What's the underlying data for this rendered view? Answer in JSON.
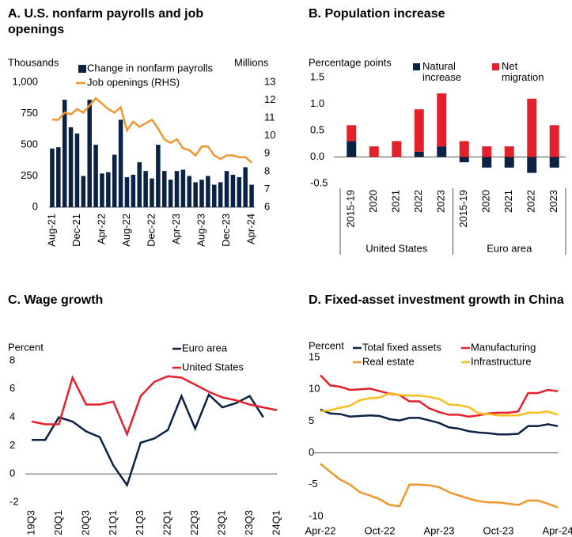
{
  "chart_data": [
    {
      "type": "combo",
      "title": "A. U.S. nonfarm payrolls and job openings",
      "y_label": "Thousands",
      "y2_label": "Millions",
      "categories": [
        "Aug-21",
        null,
        null,
        null,
        "Dec-21",
        null,
        null,
        null,
        "Apr-22",
        null,
        null,
        null,
        "Aug-22",
        null,
        null,
        null,
        "Dec-22",
        null,
        null,
        null,
        "Apr-23",
        null,
        null,
        null,
        "Aug-23",
        null,
        null,
        null,
        "Dec-23",
        null,
        null,
        null,
        "Apr-24"
      ],
      "series": [
        {
          "name": "Change in nonfarm payrolls",
          "kind": "bar",
          "color": "#0b2244",
          "values": [
            470,
            480,
            860,
            640,
            590,
            250,
            860,
            500,
            270,
            280,
            420,
            700,
            240,
            260,
            360,
            290,
            230,
            500,
            290,
            220,
            290,
            300,
            250,
            200,
            220,
            250,
            180,
            200,
            290,
            260,
            240,
            320,
            180
          ]
        },
        {
          "name": "Job openings (RHS)",
          "kind": "line",
          "axis": "y2",
          "color": "#f0962f",
          "values": [
            10.9,
            10.9,
            11.3,
            11.2,
            11.5,
            11.3,
            11.7,
            12.1,
            11.8,
            11.5,
            11.3,
            11.6,
            10.3,
            10.8,
            10.5,
            10.7,
            10.9,
            10.4,
            9.8,
            9.6,
            9.8,
            9.3,
            9.2,
            8.9,
            9.4,
            9.4,
            8.9,
            8.7,
            8.9,
            8.9,
            8.8,
            8.8,
            8.5
          ]
        }
      ],
      "ylim": [
        0,
        1000
      ],
      "yticks": [
        0,
        250,
        500,
        750,
        {
          "value": 1000,
          "label": "1,000"
        }
      ],
      "y2lim": [
        6,
        13
      ],
      "y2ticks": [
        6,
        7,
        8,
        9,
        10,
        11,
        12,
        13
      ]
    },
    {
      "type": "stacked_bar",
      "title": "B. Population increase",
      "y_label": "Percentage points",
      "categories": [
        "2015-19",
        "2020",
        "2021",
        "2022",
        "2023",
        "2015-19",
        "2020",
        "2021",
        "2022",
        "2023"
      ],
      "groups": [
        "United States",
        "Euro area"
      ],
      "series": [
        {
          "name": "Natural increase",
          "color": "#0b2244",
          "values": [
            0.3,
            0,
            0,
            0.1,
            0.2,
            -0.1,
            -0.2,
            -0.2,
            -0.3,
            -0.2
          ]
        },
        {
          "name": "Net migration",
          "color": "#e4212b",
          "values": [
            0.3,
            0.2,
            0.3,
            0.8,
            1.0,
            0.3,
            0.2,
            0.2,
            1.1,
            0.6
          ]
        }
      ],
      "ylim": [
        -0.5,
        1.5
      ],
      "yticks": [
        -0.5,
        {
          "value": 0,
          "label": "0.0"
        },
        0.5,
        {
          "value": 1,
          "label": "1.0"
        },
        1.5
      ]
    },
    {
      "type": "line",
      "title": "C. Wage growth",
      "y_label": "Percent",
      "categories": [
        "19Q3",
        null,
        "20Q1",
        null,
        "20Q3",
        null,
        "21Q1",
        null,
        "21Q3",
        null,
        "22Q1",
        null,
        "22Q3",
        null,
        "23Q1",
        null,
        "23Q3",
        null,
        "24Q1"
      ],
      "series": [
        {
          "name": "Euro area",
          "color": "#0b2244",
          "values": [
            2.4,
            2.4,
            4.0,
            3.7,
            3.0,
            2.6,
            0.6,
            -0.8,
            2.2,
            2.5,
            3.1,
            5.5,
            3.2,
            5.6,
            4.7,
            5.0,
            5.5,
            4.0,
            null
          ]
        },
        {
          "name": "United States",
          "color": "#e4212b",
          "values": [
            3.7,
            3.5,
            3.5,
            6.8,
            4.9,
            4.9,
            5.1,
            2.8,
            5.5,
            6.5,
            6.9,
            6.8,
            6.3,
            5.8,
            5.4,
            5.2,
            4.9,
            4.7,
            4.5
          ]
        }
      ],
      "ylim": [
        -2,
        8
      ],
      "yticks": [
        -2,
        0,
        2,
        4,
        6,
        8
      ]
    },
    {
      "type": "line",
      "title": "D. Fixed-asset investment growth in China",
      "y_label": "Percent",
      "categories": [
        "Apr-22",
        null,
        null,
        null,
        null,
        null,
        "Oct-22",
        null,
        null,
        null,
        null,
        null,
        "Apr-23",
        null,
        null,
        null,
        null,
        null,
        "Oct-23",
        null,
        null,
        null,
        null,
        null,
        "Apr-24"
      ],
      "series": [
        {
          "name": "Total fixed assets",
          "color": "#0b2244",
          "values": [
            6.8,
            6.2,
            6.1,
            5.7,
            5.8,
            5.9,
            5.8,
            5.3,
            5.1,
            5.5,
            5.5,
            5.1,
            4.7,
            4.0,
            3.8,
            3.4,
            3.2,
            3.1,
            2.9,
            2.9,
            3.0,
            4.2,
            4.2,
            4.5,
            4.2
          ]
        },
        {
          "name": "Manufacturing",
          "color": "#e4212b",
          "values": [
            12.2,
            10.6,
            10.4,
            9.9,
            10.0,
            10.1,
            9.7,
            9.3,
            9.1,
            8.1,
            8.1,
            7.0,
            6.4,
            6.0,
            6.0,
            5.7,
            5.9,
            6.2,
            6.3,
            6.3,
            6.5,
            9.4,
            9.4,
            9.9,
            9.7
          ]
        },
        {
          "name": "Real estate",
          "color": "#f0962f",
          "values": [
            -1.7,
            -3.0,
            -4.2,
            -5.0,
            -6.2,
            -6.7,
            -7.3,
            -8.2,
            -8.4,
            -5.0,
            -5.0,
            -5.1,
            -5.4,
            -6.2,
            -6.7,
            -7.2,
            -7.6,
            -7.8,
            -7.8,
            -8.0,
            -8.2,
            -7.5,
            -7.5,
            -8.0,
            -8.6
          ]
        },
        {
          "name": "Infrastructure",
          "color": "#fbbd1c",
          "values": [
            6.5,
            6.7,
            7.1,
            7.4,
            8.3,
            8.6,
            8.7,
            9.4,
            9.1,
            9.0,
            9.0,
            8.8,
            8.5,
            7.6,
            7.5,
            7.2,
            6.2,
            6.1,
            5.9,
            5.9,
            5.9,
            6.3,
            6.3,
            6.5,
            6.0
          ]
        }
      ],
      "ylim": [
        -10,
        15
      ],
      "yticks": [
        -10,
        -5,
        0,
        5,
        10,
        15
      ]
    }
  ]
}
